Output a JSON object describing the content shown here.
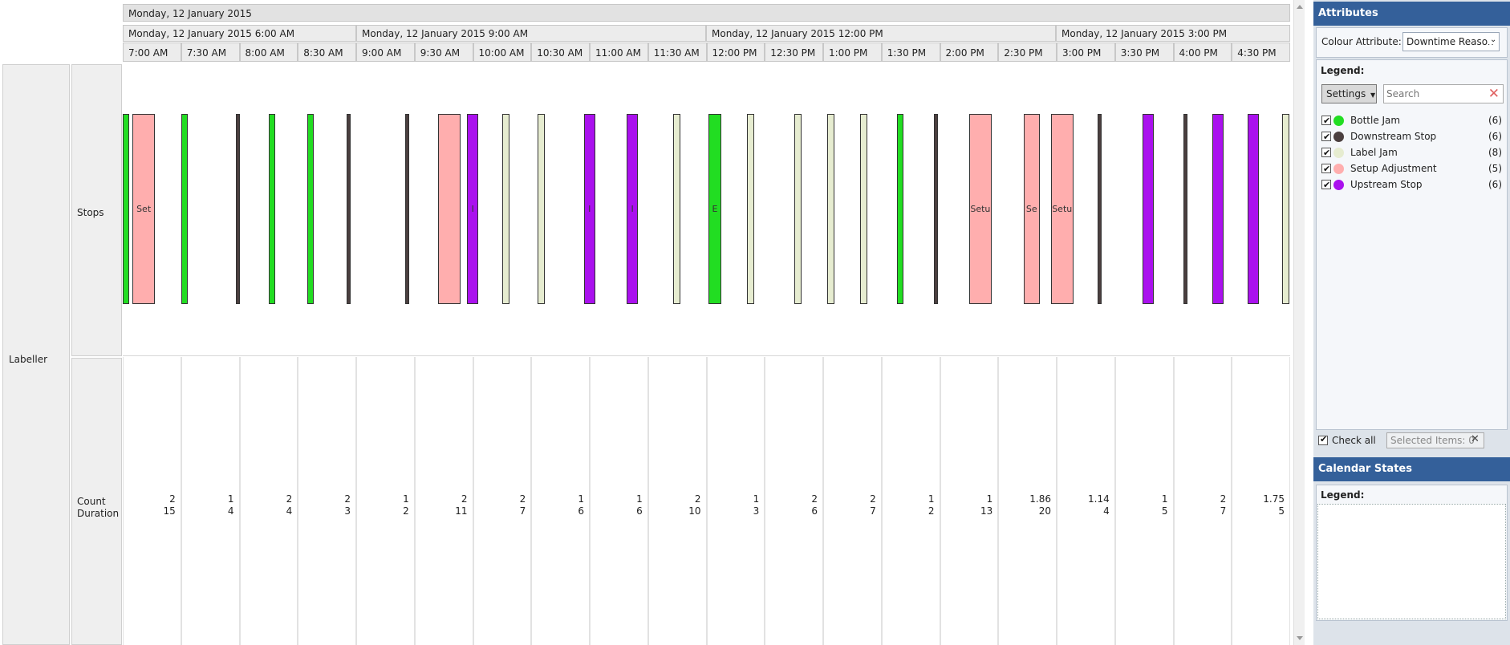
{
  "header": {
    "day": "Monday, 12 January 2015",
    "periods": [
      "Monday, 12 January 2015 6:00 AM",
      "Monday, 12 January 2015 9:00 AM",
      "Monday, 12 January 2015 12:00 PM",
      "Monday, 12 January 2015 3:00 PM"
    ],
    "hours": [
      "7:00 AM",
      "7:30 AM",
      "8:00 AM",
      "8:30 AM",
      "9:00 AM",
      "9:30 AM",
      "10:00 AM",
      "10:30 AM",
      "11:00 AM",
      "11:30 AM",
      "12:00 PM",
      "12:30 PM",
      "1:00 PM",
      "1:30 PM",
      "2:00 PM",
      "2:30 PM",
      "3:00 PM",
      "3:30 PM",
      "4:00 PM",
      "4:30 PM"
    ]
  },
  "rows": {
    "group_label": "Labeller",
    "stops_label": "Stops",
    "count_label": "Count",
    "duration_label": "Duration"
  },
  "stops": {
    "colors": {
      "Bottle Jam": "#22dd22",
      "Downstream Stop": "#4b3f3f",
      "Label Jam": "#e6ecd0",
      "Setup Adjustment": "#ffaeae",
      "Upstream Stop": "#aa11ee"
    },
    "bars": [
      {
        "type": "Bottle Jam",
        "start": "7:00",
        "label": ""
      },
      {
        "type": "Setup Adjustment",
        "start": "7:05",
        "label": "Set"
      },
      {
        "type": "Bottle Jam",
        "start": "7:30",
        "label": ""
      },
      {
        "type": "Downstream Stop",
        "start": "7:58",
        "label": ""
      },
      {
        "type": "Bottle Jam",
        "start": "8:15",
        "label": ""
      },
      {
        "type": "Bottle Jam",
        "start": "8:35",
        "label": ""
      },
      {
        "type": "Downstream Stop",
        "start": "8:55",
        "label": ""
      },
      {
        "type": "Downstream Stop",
        "start": "9:25",
        "label": ""
      },
      {
        "type": "Setup Adjustment",
        "start": "9:42",
        "label": ""
      },
      {
        "type": "Upstream Stop",
        "start": "9:57",
        "label": "I"
      },
      {
        "type": "Label Jam",
        "start": "10:15",
        "label": ""
      },
      {
        "type": "Label Jam",
        "start": "10:33",
        "label": ""
      },
      {
        "type": "Upstream Stop",
        "start": "10:57",
        "label": "I"
      },
      {
        "type": "Upstream Stop",
        "start": "11:19",
        "label": "I"
      },
      {
        "type": "Label Jam",
        "start": "11:43",
        "label": ""
      },
      {
        "type": "Bottle Jam",
        "start": "12:01",
        "label": "E"
      },
      {
        "type": "Label Jam",
        "start": "12:21",
        "label": ""
      },
      {
        "type": "Label Jam",
        "start": "12:45",
        "label": ""
      },
      {
        "type": "Label Jam",
        "start": "1:02",
        "label": ""
      },
      {
        "type": "Label Jam",
        "start": "1:19",
        "label": ""
      },
      {
        "type": "Bottle Jam",
        "start": "1:38",
        "label": ""
      },
      {
        "type": "Downstream Stop",
        "start": "1:57",
        "label": ""
      },
      {
        "type": "Setup Adjustment",
        "start": "2:15",
        "label": "Setu"
      },
      {
        "type": "Setup Adjustment",
        "start": "2:43",
        "label": "Se"
      },
      {
        "type": "Setup Adjustment",
        "start": "2:57",
        "label": "Setu"
      },
      {
        "type": "Downstream Stop",
        "start": "3:21",
        "label": ""
      },
      {
        "type": "Upstream Stop",
        "start": "3:44",
        "label": ""
      },
      {
        "type": "Downstream Stop",
        "start": "4:05",
        "label": ""
      },
      {
        "type": "Upstream Stop",
        "start": "4:20",
        "label": ""
      },
      {
        "type": "Upstream Stop",
        "start": "4:38",
        "label": ""
      },
      {
        "type": "Label Jam",
        "start": "4:56",
        "label": ""
      }
    ]
  },
  "summary": [
    {
      "count": "2",
      "duration": "15"
    },
    {
      "count": "1",
      "duration": "4"
    },
    {
      "count": "2",
      "duration": "4"
    },
    {
      "count": "2",
      "duration": "3"
    },
    {
      "count": "1",
      "duration": "2"
    },
    {
      "count": "2",
      "duration": "11"
    },
    {
      "count": "2",
      "duration": "7"
    },
    {
      "count": "1",
      "duration": "6"
    },
    {
      "count": "1",
      "duration": "6"
    },
    {
      "count": "2",
      "duration": "10"
    },
    {
      "count": "1",
      "duration": "3"
    },
    {
      "count": "2",
      "duration": "6"
    },
    {
      "count": "2",
      "duration": "7"
    },
    {
      "count": "1",
      "duration": "2"
    },
    {
      "count": "1",
      "duration": "13"
    },
    {
      "count": "1.86",
      "duration": "20"
    },
    {
      "count": "1.14",
      "duration": "4"
    },
    {
      "count": "1",
      "duration": "5"
    },
    {
      "count": "2",
      "duration": "7"
    },
    {
      "count": "1.75",
      "duration": "5"
    }
  ],
  "attributes": {
    "title": "Attributes",
    "colour_attribute_label": "Colour Attribute:",
    "colour_attribute_value": "Downtime Reason",
    "legend_label": "Legend:",
    "settings_label": "Settings",
    "search_placeholder": "Search",
    "legend": [
      {
        "label": "Bottle Jam",
        "count": "(6)",
        "color": "#22dd22",
        "checked": true
      },
      {
        "label": "Downstream Stop",
        "count": "(6)",
        "color": "#4b3f3f",
        "checked": true
      },
      {
        "label": "Label Jam",
        "count": "(8)",
        "color": "#e6ecd0",
        "checked": true
      },
      {
        "label": "Setup Adjustment",
        "count": "(5)",
        "color": "#ffaeae",
        "checked": true
      },
      {
        "label": "Upstream Stop",
        "count": "(6)",
        "color": "#aa11ee",
        "checked": true
      }
    ],
    "check_all_label": "Check all",
    "selected_items": "Selected Items: 0"
  },
  "calendar": {
    "title": "Calendar States",
    "legend_label": "Legend:"
  }
}
